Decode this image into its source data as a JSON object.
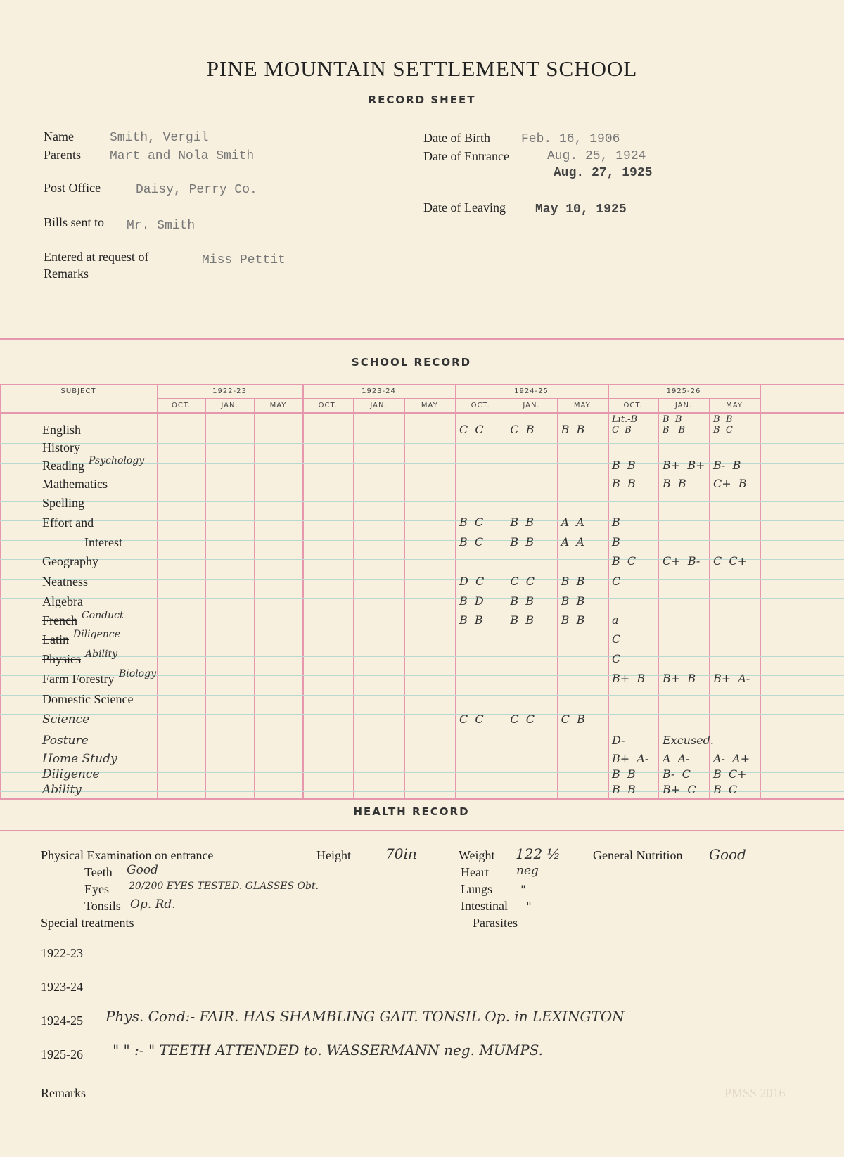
{
  "header": {
    "school": "PINE MOUNTAIN SETTLEMENT SCHOOL",
    "title": "RECORD SHEET"
  },
  "student": {
    "name_label": "Name",
    "name": "Smith, Vergil",
    "parents_label": "Parents",
    "parents": "Mart and Nola Smith",
    "post_office_label": "Post Office",
    "post_office": "Daisy, Perry Co.",
    "bills_label": "Bills sent to",
    "bills": "Mr. Smith",
    "entered_label": "Entered at request of",
    "entered": "Miss Pettit",
    "remarks_label": "Remarks",
    "dob_label": "Date of Birth",
    "dob": "Feb. 16, 1906",
    "entrance_label": "Date of Entrance",
    "entrance_1": "Aug. 25, 1924",
    "entrance_2": "Aug. 27, 1925",
    "leaving_label": "Date of Leaving",
    "leaving": "May 10, 1925"
  },
  "school_record": {
    "title": "SCHOOL RECORD",
    "subject_header": "SUBJECT",
    "years": [
      "1922-23",
      "1923-24",
      "1924-25",
      "1925-26"
    ],
    "terms": [
      "OCT.",
      "JAN.",
      "MAY"
    ],
    "rows": [
      {
        "subject": "English",
        "grades": [
          "",
          "",
          "",
          "",
          "",
          "",
          "C  C",
          "C  B",
          "B  B",
          "Lit.-B\nC  B-",
          "B  B\nB-  B-",
          "B  B\nB  C"
        ]
      },
      {
        "subject": "History",
        "grades": [
          "",
          "",
          "",
          "",
          "",
          "",
          "",
          "",
          "",
          "",
          "",
          ""
        ]
      },
      {
        "subject": "Reading",
        "note": "Psychology",
        "struck": true,
        "grades": [
          "",
          "",
          "",
          "",
          "",
          "",
          "",
          "",
          "",
          "B  B",
          "B+  B+",
          "B-  B"
        ]
      },
      {
        "subject": "Mathematics",
        "grades": [
          "",
          "",
          "",
          "",
          "",
          "",
          "",
          "",
          "",
          "B  B",
          "B  B",
          "C+  B"
        ]
      },
      {
        "subject": "Spelling",
        "grades": [
          "",
          "",
          "",
          "",
          "",
          "",
          "",
          "",
          "",
          "",
          "",
          ""
        ]
      },
      {
        "subject": "Effort and",
        "grades": [
          "",
          "",
          "",
          "",
          "",
          "",
          "B  C",
          "B  B",
          "A  A",
          "B",
          "",
          ""
        ]
      },
      {
        "subject": "Interest",
        "indent": true,
        "grades": [
          "",
          "",
          "",
          "",
          "",
          "",
          "B  C",
          "B  B",
          "A  A",
          "B",
          "",
          ""
        ]
      },
      {
        "subject": "Geography",
        "grades": [
          "",
          "",
          "",
          "",
          "",
          "",
          "",
          "",
          "",
          "B  C",
          "C+  B-",
          "C  C+"
        ]
      },
      {
        "subject": "Neatness",
        "grades": [
          "",
          "",
          "",
          "",
          "",
          "",
          "D  C",
          "C  C",
          "B  B",
          "C",
          "",
          ""
        ]
      },
      {
        "subject": "Algebra",
        "grades": [
          "",
          "",
          "",
          "",
          "",
          "",
          "B  D",
          "B  B",
          "B  B",
          "",
          "",
          ""
        ]
      },
      {
        "subject": "French",
        "note": "Conduct",
        "struck": true,
        "grades": [
          "",
          "",
          "",
          "",
          "",
          "",
          "B  B",
          "B  B",
          "B  B",
          "a",
          "",
          ""
        ]
      },
      {
        "subject": "Latin",
        "note": "Diligence",
        "struck": true,
        "grades": [
          "",
          "",
          "",
          "",
          "",
          "",
          "",
          "",
          "",
          "C",
          "",
          ""
        ]
      },
      {
        "subject": "Physics",
        "note": "Ability",
        "struck": true,
        "grades": [
          "",
          "",
          "",
          "",
          "",
          "",
          "",
          "",
          "",
          "C",
          "",
          ""
        ]
      },
      {
        "subject": "Farm Forestry",
        "note": "Biology",
        "struck": true,
        "grades": [
          "",
          "",
          "",
          "",
          "",
          "",
          "",
          "",
          "",
          "B+  B",
          "B+  B",
          "B+  A-"
        ]
      },
      {
        "subject": "Domestic Science",
        "grades": [
          "",
          "",
          "",
          "",
          "",
          "",
          "",
          "",
          "",
          "",
          "",
          ""
        ]
      },
      {
        "subject": "Science",
        "handwritten": true,
        "grades": [
          "",
          "",
          "",
          "",
          "",
          "",
          "C  C",
          "C  C",
          "C  B",
          "",
          "",
          ""
        ]
      },
      {
        "subject": "Posture",
        "handwritten": true,
        "grades": [
          "",
          "",
          "",
          "",
          "",
          "",
          "",
          "",
          "",
          "D-",
          "Excused.",
          ""
        ]
      },
      {
        "subject": "Home Study",
        "handwritten": true,
        "grades": [
          "",
          "",
          "",
          "",
          "",
          "",
          "",
          "",
          "",
          "B+  A-",
          "A  A-",
          "A-  A+"
        ]
      },
      {
        "subject": "Diligence",
        "handwritten": true,
        "grades": [
          "",
          "",
          "",
          "",
          "",
          "",
          "",
          "",
          "",
          "B  B",
          "B-  C",
          "B  C+"
        ]
      },
      {
        "subject": "Ability",
        "handwritten": true,
        "grades": [
          "",
          "",
          "",
          "",
          "",
          "",
          "",
          "",
          "",
          "B  B",
          "B+  C",
          "B  C"
        ]
      }
    ]
  },
  "health": {
    "title": "HEALTH RECORD",
    "phys_label": "Physical Examination on entrance",
    "height_label": "Height",
    "height": "70in",
    "weight_label": "Weight",
    "weight": "122 ½",
    "nutrition_label": "General Nutrition",
    "nutrition": "Good",
    "teeth_label": "Teeth",
    "teeth": "Good",
    "heart_label": "Heart",
    "heart": "neg",
    "eyes_label": "Eyes",
    "eyes": "20/200 EYES TESTED. GLASSES Obt.",
    "lungs_label": "Lungs",
    "lungs": "\"",
    "tonsils_label": "Tonsils",
    "tonsils": "Op. Rd.",
    "intestinal_label": "Intestinal",
    "intestinal": "\"",
    "special_label": "Special treatments",
    "parasites_label": "Parasites",
    "years": [
      {
        "label": "1922-23",
        "note": ""
      },
      {
        "label": "1923-24",
        "note": ""
      },
      {
        "label": "1924-25",
        "note": "Phys. Cond:- FAIR. HAS SHAMBLING GAIT. TONSIL Op. in LEXINGTON"
      },
      {
        "label": "1925-26",
        "note": "\"      \" :-  \"   TEETH ATTENDED to. WASSERMANN neg. MUMPS."
      }
    ],
    "remarks_label": "Remarks"
  },
  "watermark": "PMSS 2016"
}
